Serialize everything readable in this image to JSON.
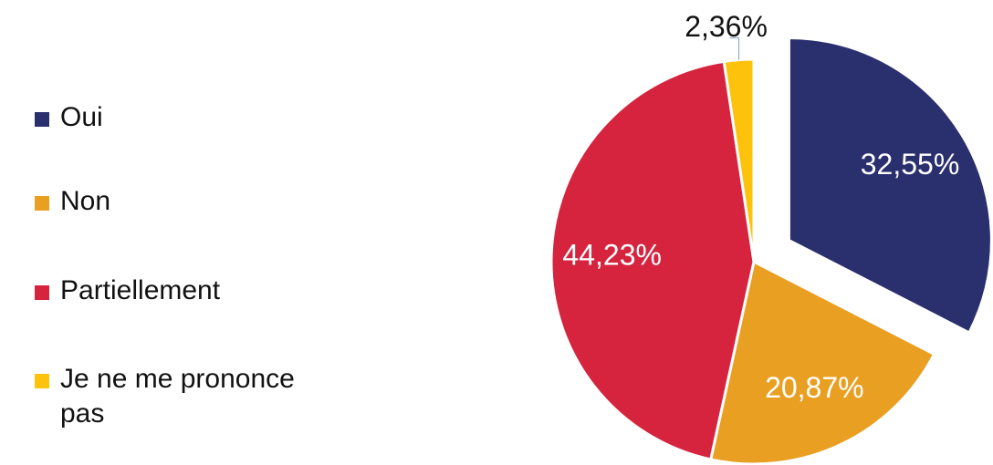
{
  "chart_data": {
    "type": "pie",
    "categories": [
      "Oui",
      "Non",
      "Partiellement",
      "Je ne me prononce pas"
    ],
    "values": [
      32.55,
      20.87,
      44.23,
      2.36
    ],
    "value_labels": [
      "32,55%",
      "20,87%",
      "44,23%",
      "2,36%"
    ],
    "colors": [
      "#2a2f6e",
      "#e89f22",
      "#d6243f",
      "#fdc20b"
    ],
    "legend": "left"
  }
}
